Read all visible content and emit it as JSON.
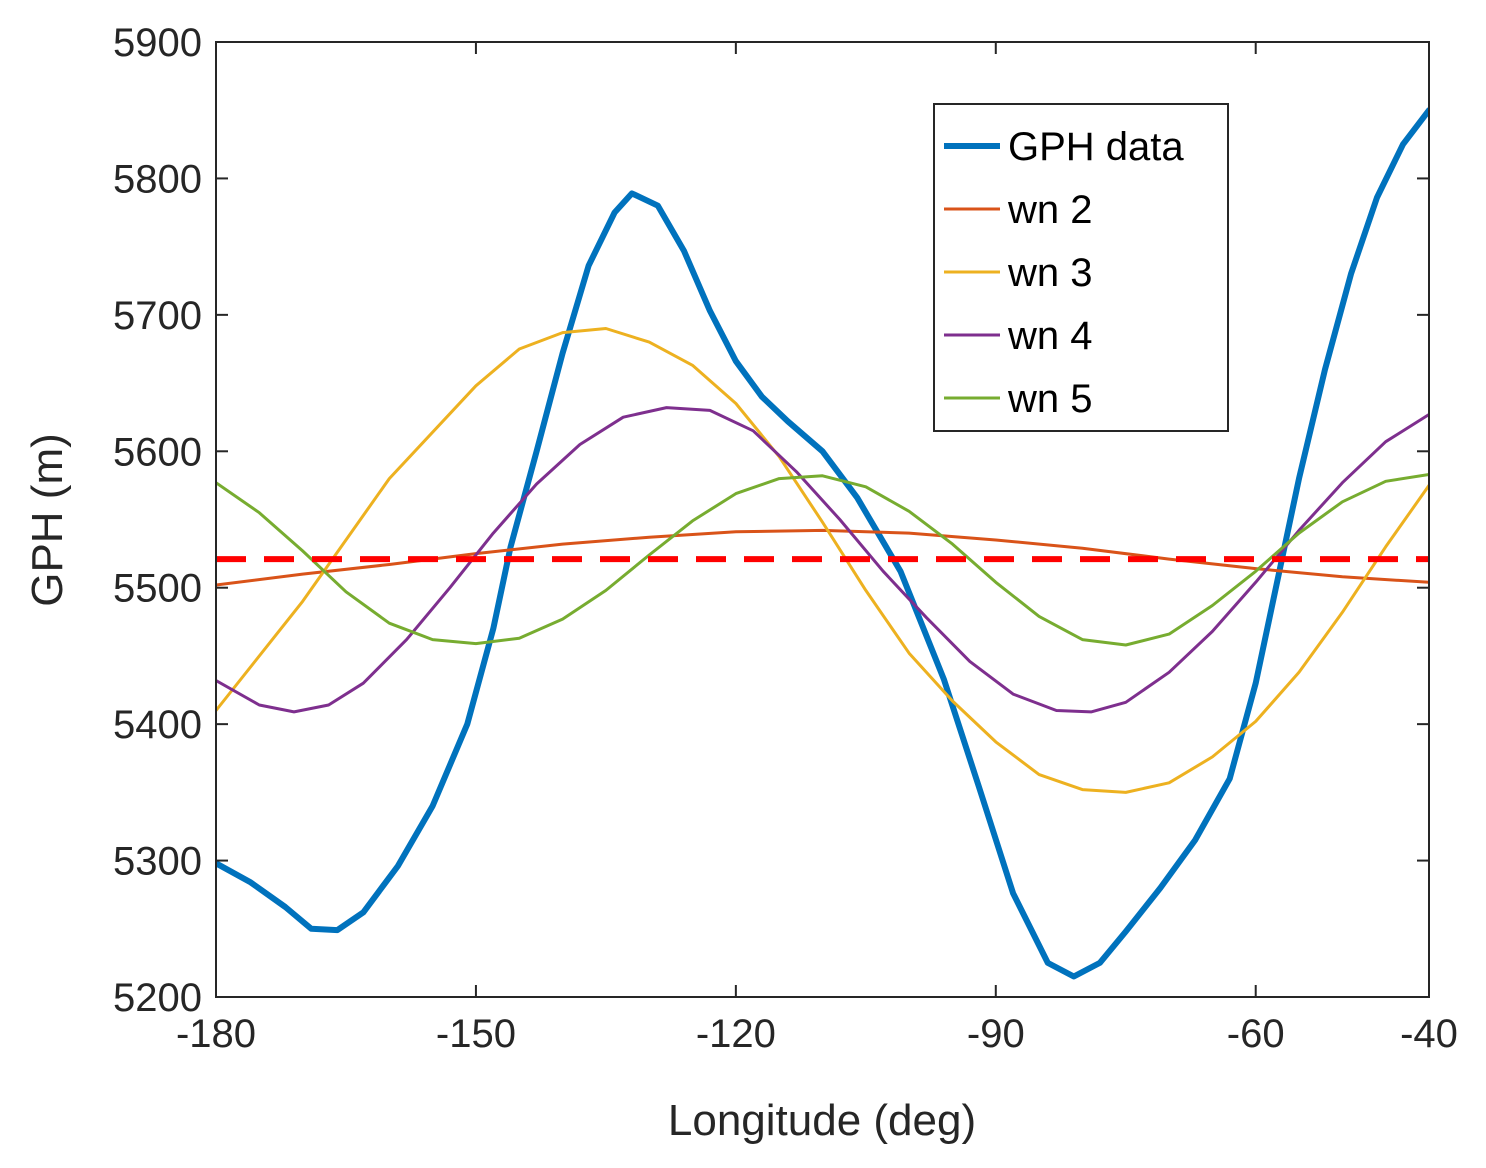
{
  "chart_data": {
    "type": "line",
    "title": "",
    "xlabel": "Longitude (deg)",
    "ylabel": "GPH (m)",
    "xlim": [
      -180,
      -40
    ],
    "ylim": [
      5200,
      5900
    ],
    "xticks": [
      -180,
      -150,
      -120,
      -90,
      -60,
      -40
    ],
    "yticks": [
      5200,
      5300,
      5400,
      5500,
      5600,
      5700,
      5800,
      5900
    ],
    "grid": false,
    "legend_position": "top-right",
    "mean_line": {
      "y": 5521,
      "color": "#ff0000",
      "style": "dashed"
    },
    "series": [
      {
        "name": "GPH data",
        "color": "#0072bd",
        "width": "thick",
        "points": [
          [
            -180,
            5298
          ],
          [
            -176,
            5284
          ],
          [
            -172,
            5266
          ],
          [
            -169,
            5250
          ],
          [
            -166,
            5249
          ],
          [
            -163,
            5262
          ],
          [
            -159,
            5296
          ],
          [
            -155,
            5340
          ],
          [
            -151,
            5400
          ],
          [
            -148,
            5470
          ],
          [
            -146,
            5530
          ],
          [
            -143,
            5600
          ],
          [
            -140,
            5672
          ],
          [
            -137,
            5736
          ],
          [
            -134,
            5775
          ],
          [
            -132,
            5789
          ],
          [
            -129,
            5780
          ],
          [
            -126,
            5747
          ],
          [
            -123,
            5703
          ],
          [
            -120,
            5666
          ],
          [
            -117,
            5640
          ],
          [
            -114,
            5622
          ],
          [
            -110,
            5600
          ],
          [
            -106,
            5566
          ],
          [
            -101,
            5512
          ],
          [
            -96,
            5433
          ],
          [
            -92,
            5355
          ],
          [
            -88,
            5276
          ],
          [
            -84,
            5225
          ],
          [
            -81,
            5215
          ],
          [
            -78,
            5225
          ],
          [
            -75,
            5248
          ],
          [
            -71,
            5280
          ],
          [
            -67,
            5315
          ],
          [
            -63,
            5360
          ],
          [
            -60,
            5430
          ],
          [
            -58,
            5490
          ],
          [
            -55,
            5580
          ],
          [
            -52,
            5660
          ],
          [
            -49,
            5730
          ],
          [
            -46,
            5786
          ],
          [
            -43,
            5825
          ],
          [
            -40,
            5850
          ]
        ]
      },
      {
        "name": "wn 2",
        "color": "#d95319",
        "width": "thin",
        "points": [
          [
            -180,
            5502
          ],
          [
            -170,
            5510
          ],
          [
            -160,
            5517
          ],
          [
            -150,
            5525
          ],
          [
            -140,
            5532
          ],
          [
            -130,
            5537
          ],
          [
            -120,
            5541
          ],
          [
            -110,
            5542
          ],
          [
            -100,
            5540
          ],
          [
            -90,
            5535
          ],
          [
            -80,
            5529
          ],
          [
            -70,
            5521
          ],
          [
            -60,
            5514
          ],
          [
            -50,
            5508
          ],
          [
            -40,
            5504
          ]
        ]
      },
      {
        "name": "wn 3",
        "color": "#edb120",
        "width": "thin",
        "points": [
          [
            -180,
            5410
          ],
          [
            -170,
            5490
          ],
          [
            -160,
            5580
          ],
          [
            -150,
            5648
          ],
          [
            -145,
            5675
          ],
          [
            -140,
            5687
          ],
          [
            -135,
            5690
          ],
          [
            -130,
            5680
          ],
          [
            -125,
            5663
          ],
          [
            -120,
            5635
          ],
          [
            -115,
            5596
          ],
          [
            -110,
            5548
          ],
          [
            -105,
            5498
          ],
          [
            -100,
            5452
          ],
          [
            -95,
            5417
          ],
          [
            -90,
            5387
          ],
          [
            -85,
            5363
          ],
          [
            -80,
            5352
          ],
          [
            -75,
            5350
          ],
          [
            -70,
            5357
          ],
          [
            -65,
            5376
          ],
          [
            -60,
            5402
          ],
          [
            -55,
            5438
          ],
          [
            -50,
            5482
          ],
          [
            -45,
            5530
          ],
          [
            -40,
            5575
          ]
        ]
      },
      {
        "name": "wn 4",
        "color": "#7e2f8e",
        "width": "thin",
        "points": [
          [
            -180,
            5432
          ],
          [
            -175,
            5414
          ],
          [
            -171,
            5409
          ],
          [
            -167,
            5414
          ],
          [
            -163,
            5430
          ],
          [
            -158,
            5462
          ],
          [
            -153,
            5500
          ],
          [
            -148,
            5540
          ],
          [
            -143,
            5576
          ],
          [
            -138,
            5605
          ],
          [
            -133,
            5625
          ],
          [
            -128,
            5632
          ],
          [
            -123,
            5630
          ],
          [
            -118,
            5615
          ],
          [
            -113,
            5585
          ],
          [
            -108,
            5550
          ],
          [
            -103,
            5512
          ],
          [
            -98,
            5478
          ],
          [
            -93,
            5446
          ],
          [
            -88,
            5422
          ],
          [
            -83,
            5410
          ],
          [
            -79,
            5409
          ],
          [
            -75,
            5416
          ],
          [
            -70,
            5438
          ],
          [
            -65,
            5468
          ],
          [
            -60,
            5504
          ],
          [
            -55,
            5542
          ],
          [
            -50,
            5577
          ],
          [
            -45,
            5607
          ],
          [
            -40,
            5627
          ]
        ]
      },
      {
        "name": "wn 5",
        "color": "#77ac30",
        "width": "thin",
        "points": [
          [
            -180,
            5577
          ],
          [
            -175,
            5555
          ],
          [
            -170,
            5527
          ],
          [
            -165,
            5497
          ],
          [
            -160,
            5474
          ],
          [
            -155,
            5462
          ],
          [
            -150,
            5459
          ],
          [
            -145,
            5463
          ],
          [
            -140,
            5477
          ],
          [
            -135,
            5498
          ],
          [
            -130,
            5524
          ],
          [
            -125,
            5549
          ],
          [
            -120,
            5569
          ],
          [
            -115,
            5580
          ],
          [
            -110,
            5582
          ],
          [
            -105,
            5574
          ],
          [
            -100,
            5556
          ],
          [
            -95,
            5532
          ],
          [
            -90,
            5504
          ],
          [
            -85,
            5479
          ],
          [
            -80,
            5462
          ],
          [
            -75,
            5458
          ],
          [
            -70,
            5466
          ],
          [
            -65,
            5487
          ],
          [
            -60,
            5512
          ],
          [
            -55,
            5540
          ],
          [
            -50,
            5563
          ],
          [
            -45,
            5578
          ],
          [
            -40,
            5583
          ]
        ]
      }
    ]
  }
}
